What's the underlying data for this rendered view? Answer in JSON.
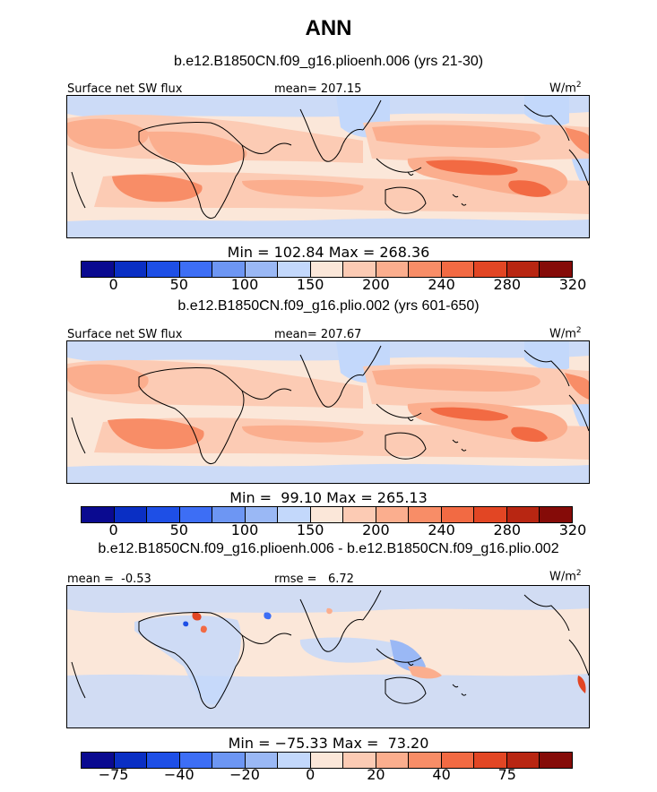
{
  "title": "ANN",
  "chart_data": [
    {
      "type": "heatmap",
      "case_label": "b.e12.B1850CN.f09_g16.plioenh.006 (yrs 21-30)",
      "variable": "Surface net SW flux",
      "stat_text": "mean= 207.15",
      "units_main": "W/m",
      "units_exp": "2",
      "minmax_text": "Min = 102.84 Max = 268.36",
      "min": 102.84,
      "max": 268.36,
      "colorbar_ticks": [
        "0",
        "50",
        "100",
        "150",
        "200",
        "240",
        "280",
        "320"
      ],
      "colorbar_colors": [
        "#0a0a90",
        "#0a2fc4",
        "#1e4fe6",
        "#3d6ef5",
        "#6d96f3",
        "#9ab8f5",
        "#c3d8fb",
        "#fbe7d9",
        "#fccbb4",
        "#fbae8e",
        "#f88d67",
        "#f26a43",
        "#e24624",
        "#b82612",
        "#850b08"
      ]
    },
    {
      "type": "heatmap",
      "case_label": "b.e12.B1850CN.f09_g16.plio.002 (yrs 601-650)",
      "variable": "Surface net SW flux",
      "stat_text": "mean= 207.67",
      "units_main": "W/m",
      "units_exp": "2",
      "minmax_text": "Min =  99.10 Max = 265.13",
      "min": 99.1,
      "max": 265.13,
      "colorbar_ticks": [
        "0",
        "50",
        "100",
        "150",
        "200",
        "240",
        "280",
        "320"
      ],
      "colorbar_colors": [
        "#0a0a90",
        "#0a2fc4",
        "#1e4fe6",
        "#3d6ef5",
        "#6d96f3",
        "#9ab8f5",
        "#c3d8fb",
        "#fbe7d9",
        "#fccbb4",
        "#fbae8e",
        "#f88d67",
        "#f26a43",
        "#e24624",
        "#b82612",
        "#850b08"
      ]
    },
    {
      "type": "heatmap",
      "case_label": "b.e12.B1850CN.f09_g16.plioenh.006 - b.e12.B1850CN.f09_g16.plio.002",
      "stat_text": "mean =  -0.53",
      "stat2_text": "rmse =   6.72",
      "units_main": "W/m",
      "units_exp": "2",
      "minmax_text": "Min = −75.33 Max =  73.20",
      "min": -75.33,
      "max": 73.2,
      "colorbar_ticks": [
        "−75",
        "−40",
        "−20",
        "0",
        "20",
        "40",
        "75"
      ],
      "colorbar_colors": [
        "#0a0a90",
        "#0a2fc4",
        "#1e4fe6",
        "#3d6ef5",
        "#6d96f3",
        "#9ab8f5",
        "#c3d8fb",
        "#fbe7d9",
        "#fccbb4",
        "#fbae8e",
        "#f88d67",
        "#f26a43",
        "#e24624",
        "#b82612",
        "#850b08"
      ]
    }
  ]
}
